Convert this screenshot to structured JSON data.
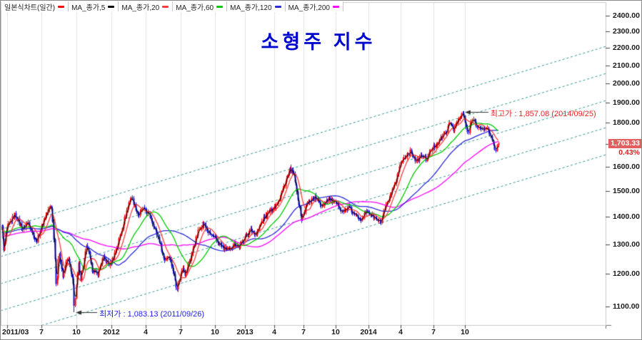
{
  "window": {
    "legend": {
      "chart_type_label": "일본식차트(일간)",
      "chart_type_color": "#ff0000"
    }
  },
  "chart_data": {
    "type": "candlestick",
    "title": "소형주 지수",
    "scale": "log",
    "period": "2011/03 - 2014/12",
    "grid": "vertical-quarterly",
    "legend_position": "top-left",
    "y_axis": {
      "ticks": [
        2400,
        2300,
        2200,
        2100,
        2000,
        1900,
        1800,
        1700,
        1600,
        1500,
        1400,
        1300,
        1200,
        1100
      ],
      "tick_format": "0.00",
      "range_visible": [
        1047,
        2480
      ]
    },
    "x_axis": {
      "tick_labels": [
        "2011/03",
        "7",
        "10",
        "2012",
        "4",
        "7",
        "10",
        "2013",
        "4",
        "7",
        "10",
        "2014",
        "4",
        "7",
        "10"
      ],
      "tick_dates": [
        "2011/04/01",
        "2011/07/01",
        "2011/10/01",
        "2012/01/01",
        "2012/04/01",
        "2012/07/01",
        "2012/10/01",
        "2013/01/01",
        "2013/04/01",
        "2013/07/01",
        "2013/10/01",
        "2014/01/01",
        "2014/04/01",
        "2014/07/01",
        "2014/10/01"
      ]
    },
    "moving_averages": [
      {
        "label": "MA_종가,5",
        "period": 5,
        "color": "#000000"
      },
      {
        "label": "MA_종가,20",
        "period": 20,
        "color": "#ff3d3d"
      },
      {
        "label": "MA_종가,60",
        "period": 60,
        "color": "#00cc00"
      },
      {
        "label": "MA_종가,120",
        "period": 120,
        "color": "#2a2ad8"
      },
      {
        "label": "MA_종가,200",
        "period": 200,
        "color": "#ff00ff"
      }
    ],
    "annotations": {
      "high": {
        "label": "최고가 : 1,857.08 (2014/09/25)",
        "value": 1857.08,
        "date": "2014/09/25",
        "color": "#ee2222"
      },
      "low": {
        "label": "최저가 : 1,083.13 (2011/09/26)",
        "value": 1083.13,
        "date": "2011/09/26",
        "color": "#2222ee"
      }
    },
    "last": {
      "price": "1,703.33",
      "value": 1703.33,
      "change_pct": "0.43%",
      "date": "2014/12/19"
    },
    "colors": {
      "up": "#ff0000",
      "down": "#1414e0",
      "channel": "#2f9393",
      "grid": "#e3e3e3",
      "axis": "#6e6e6e"
    },
    "channel_lines": {
      "count": 5,
      "style": "dashed",
      "note": "parallel ascending trend channel"
    },
    "series": {
      "name": "소형주 지수",
      "price_path": [
        [
          "2011/03/04",
          1390
        ],
        [
          "2011/03/15",
          1272
        ],
        [
          "2011/04/01",
          1362
        ],
        [
          "2011/04/21",
          1408
        ],
        [
          "2011/05/12",
          1352
        ],
        [
          "2011/05/25",
          1382
        ],
        [
          "2011/06/17",
          1306
        ],
        [
          "2011/07/08",
          1392
        ],
        [
          "2011/07/26",
          1448
        ],
        [
          "2011/08/02",
          1328
        ],
        [
          "2011/08/09",
          1152
        ],
        [
          "2011/08/16",
          1280
        ],
        [
          "2011/08/26",
          1188
        ],
        [
          "2011/09/08",
          1260
        ],
        [
          "2011/09/16",
          1205
        ],
        [
          "2011/09/23",
          1160
        ],
        [
          "2011/09/26",
          1102
        ],
        [
          "2011/10/06",
          1232
        ],
        [
          "2011/10/12",
          1186
        ],
        [
          "2011/10/28",
          1298
        ],
        [
          "2011/11/10",
          1215
        ],
        [
          "2011/11/25",
          1198
        ],
        [
          "2011/12/09",
          1255
        ],
        [
          "2011/12/27",
          1228
        ],
        [
          "2012/01/16",
          1292
        ],
        [
          "2012/02/08",
          1408
        ],
        [
          "2012/02/22",
          1478
        ],
        [
          "2012/03/12",
          1402
        ],
        [
          "2012/03/23",
          1430
        ],
        [
          "2012/04/10",
          1406
        ],
        [
          "2012/05/04",
          1318
        ],
        [
          "2012/05/18",
          1246
        ],
        [
          "2012/06/01",
          1262
        ],
        [
          "2012/06/21",
          1153
        ],
        [
          "2012/07/06",
          1226
        ],
        [
          "2012/07/13",
          1196
        ],
        [
          "2012/07/25",
          1248
        ],
        [
          "2012/08/17",
          1346
        ],
        [
          "2012/08/29",
          1376
        ],
        [
          "2012/09/14",
          1340
        ],
        [
          "2012/10/10",
          1306
        ],
        [
          "2012/10/26",
          1286
        ],
        [
          "2012/11/15",
          1278
        ],
        [
          "2012/11/28",
          1304
        ],
        [
          "2012/12/14",
          1290
        ],
        [
          "2012/12/28",
          1322
        ],
        [
          "2013/01/18",
          1350
        ],
        [
          "2013/02/05",
          1336
        ],
        [
          "2013/02/25",
          1386
        ],
        [
          "2013/03/15",
          1418
        ],
        [
          "2013/04/03",
          1440
        ],
        [
          "2013/04/18",
          1474
        ],
        [
          "2013/05/03",
          1530
        ],
        [
          "2013/05/20",
          1588
        ],
        [
          "2013/05/31",
          1568
        ],
        [
          "2013/06/12",
          1478
        ],
        [
          "2013/06/25",
          1388
        ],
        [
          "2013/07/11",
          1452
        ],
        [
          "2013/08/01",
          1476
        ],
        [
          "2013/08/22",
          1442
        ],
        [
          "2013/09/10",
          1470
        ],
        [
          "2013/10/02",
          1448
        ],
        [
          "2013/10/22",
          1418
        ],
        [
          "2013/11/07",
          1436
        ],
        [
          "2013/11/20",
          1408
        ],
        [
          "2013/12/10",
          1392
        ],
        [
          "2013/12/27",
          1420
        ],
        [
          "2014/01/15",
          1398
        ],
        [
          "2014/02/04",
          1376
        ],
        [
          "2014/02/20",
          1438
        ],
        [
          "2014/03/05",
          1488
        ],
        [
          "2014/03/18",
          1545
        ],
        [
          "2014/04/01",
          1618
        ],
        [
          "2014/04/15",
          1652
        ],
        [
          "2014/04/29",
          1668
        ],
        [
          "2014/05/14",
          1620
        ],
        [
          "2014/05/28",
          1650
        ],
        [
          "2014/06/11",
          1632
        ],
        [
          "2014/06/26",
          1678
        ],
        [
          "2014/07/10",
          1704
        ],
        [
          "2014/07/24",
          1730
        ],
        [
          "2014/08/06",
          1756
        ],
        [
          "2014/08/19",
          1804
        ],
        [
          "2014/08/28",
          1768
        ],
        [
          "2014/09/12",
          1814
        ],
        [
          "2014/09/25",
          1846
        ],
        [
          "2014/10/08",
          1742
        ],
        [
          "2014/10/17",
          1826
        ],
        [
          "2014/10/29",
          1788
        ],
        [
          "2014/11/12",
          1760
        ],
        [
          "2014/11/21",
          1784
        ],
        [
          "2014/12/03",
          1722
        ],
        [
          "2014/12/12",
          1668
        ],
        [
          "2014/12/19",
          1703.33
        ]
      ]
    }
  }
}
